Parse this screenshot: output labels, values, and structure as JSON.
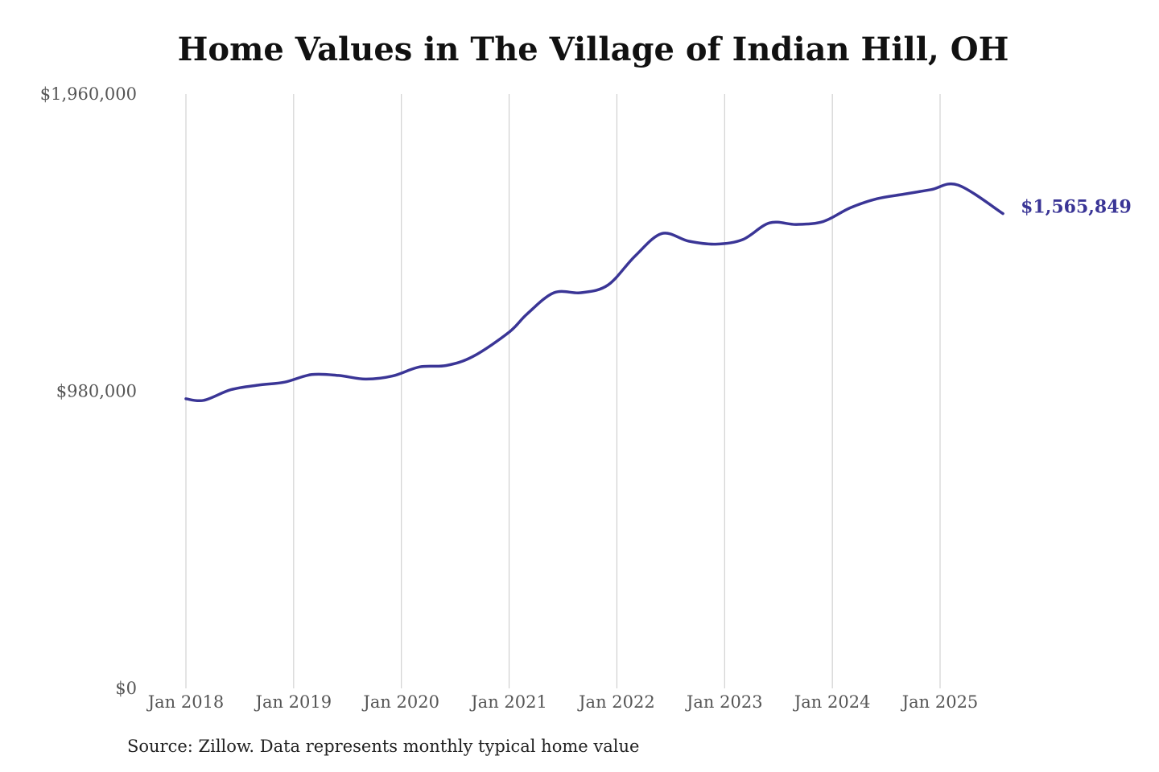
{
  "chart_data": {
    "type": "line",
    "title": "Home Values in The Village of Indian Hill, OH",
    "source": "Source: Zillow. Data represents monthly typical home value",
    "x_tick_labels": [
      "Jan 2018",
      "Jan 2019",
      "Jan 2020",
      "Jan 2021",
      "Jan 2022",
      "Jan 2023",
      "Jan 2024",
      "Jan 2025"
    ],
    "y_tick_labels": [
      "$0",
      "$980,000",
      "$1,960,000"
    ],
    "y_ticks": [
      0,
      980000,
      1960000
    ],
    "ylim": [
      0,
      1960000
    ],
    "xlim": [
      "2018-01",
      "2025-08"
    ],
    "grid": "vertical lines at January of each year",
    "line_color": "#3a3596",
    "end_label": "$1,565,849",
    "series": [
      {
        "x": [
          "2018-01",
          "2018-03",
          "2018-06",
          "2018-09",
          "2018-12",
          "2019-03",
          "2019-06",
          "2019-09",
          "2019-12",
          "2020-03",
          "2020-06",
          "2020-09",
          "2021-01",
          "2021-03",
          "2021-06",
          "2021-09",
          "2021-12",
          "2022-03",
          "2022-06",
          "2022-09",
          "2022-12",
          "2023-03",
          "2023-06",
          "2023-09",
          "2023-12",
          "2024-03",
          "2024-06",
          "2024-09",
          "2024-12",
          "2025-03",
          "2025-08"
        ],
        "values": [
          955000,
          950000,
          985000,
          1000000,
          1010000,
          1035000,
          1032000,
          1020000,
          1030000,
          1060000,
          1065000,
          1095000,
          1175000,
          1235000,
          1305000,
          1305000,
          1330000,
          1425000,
          1500000,
          1475000,
          1465000,
          1480000,
          1535000,
          1530000,
          1540000,
          1585000,
          1615000,
          1630000,
          1645000,
          1660000,
          1565849
        ]
      }
    ]
  }
}
